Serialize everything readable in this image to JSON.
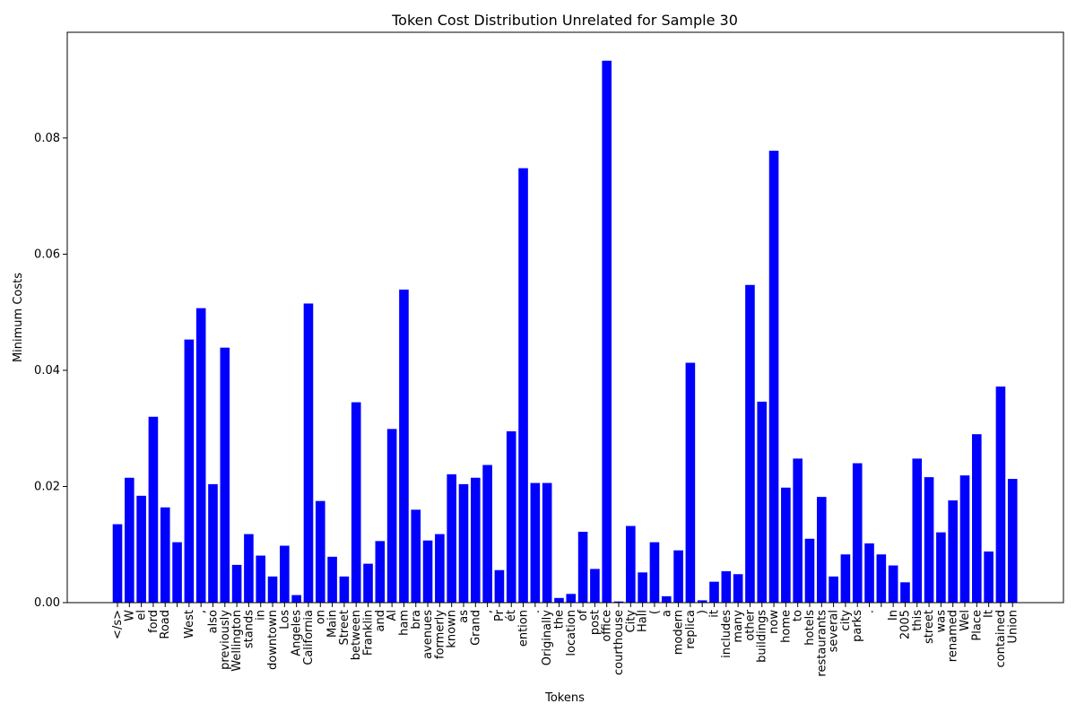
{
  "chart_data": {
    "type": "bar",
    "title": "Token Cost Distribution Unrelated for Sample 30",
    "x_label": "Tokens",
    "y_label": "Minimum Costs",
    "color": "#0000ff",
    "categories": [
      "</s>",
      "W",
      "el",
      "ford",
      "Road",
      null,
      "West",
      ",",
      "also",
      "previously",
      "Wellington",
      "stands",
      "in",
      "downtown",
      "Los",
      "Angeles",
      "California",
      "on",
      "Main",
      "Street",
      "between",
      "Franklin",
      "and",
      "Al",
      "ham",
      "bra",
      "avenues",
      "formerly",
      "known",
      "as",
      "Grand",
      ",",
      "Pr",
      "ét",
      "ention",
      ".",
      "Originally",
      "the",
      "location",
      "of",
      "post",
      "office",
      "courthouse",
      "City",
      "Hall",
      "(",
      "a",
      "modern",
      "replica",
      ")",
      "it",
      "includes",
      "many",
      "other",
      "buildings",
      "now",
      "home",
      "to",
      "hotels",
      "restaurants",
      "several",
      "city",
      "parks",
      ".",
      null,
      "In",
      "2005",
      "this",
      "street",
      "was",
      "renamed",
      "Wel",
      "Place",
      "It",
      "contained",
      "Union"
    ],
    "values": [
      0.0135,
      0.0215,
      0.0184,
      0.032,
      0.0164,
      0.0104,
      0.0453,
      0.0507,
      0.0204,
      0.0439,
      0.0065,
      0.0118,
      0.0081,
      0.0045,
      0.0098,
      0.0013,
      0.0515,
      0.0175,
      0.0079,
      0.0045,
      0.0345,
      0.0067,
      0.0106,
      0.0299,
      0.0539,
      0.016,
      0.0107,
      0.0118,
      0.0221,
      0.0204,
      0.0215,
      0.0237,
      0.0056,
      0.0295,
      0.0748,
      0.0206,
      0.0206,
      0.0008,
      0.0015,
      0.0122,
      0.0058,
      0.0933,
      0.0002,
      0.0132,
      0.0052,
      0.0104,
      0.0011,
      0.009,
      0.0413,
      0.0004,
      0.0036,
      0.0054,
      0.0049,
      0.0547,
      0.0346,
      0.0778,
      0.0198,
      0.0248,
      0.011,
      0.0182,
      0.0045,
      0.0083,
      0.024,
      0.0102,
      0.0083,
      0.0064,
      0.0035,
      0.0248,
      0.0216,
      0.0121,
      0.0176,
      0.0219,
      0.029,
      0.0088,
      0.0372,
      0.0213
    ],
    "ylim": [
      0,
      0.0982
    ],
    "yticks": [
      {
        "value": 0,
        "label": "0.00"
      },
      {
        "value": 0.02,
        "label": "0.02"
      },
      {
        "value": 0.04,
        "label": "0.04"
      },
      {
        "value": 0.06,
        "label": "0.06"
      },
      {
        "value": 0.08,
        "label": "0.08"
      }
    ]
  }
}
